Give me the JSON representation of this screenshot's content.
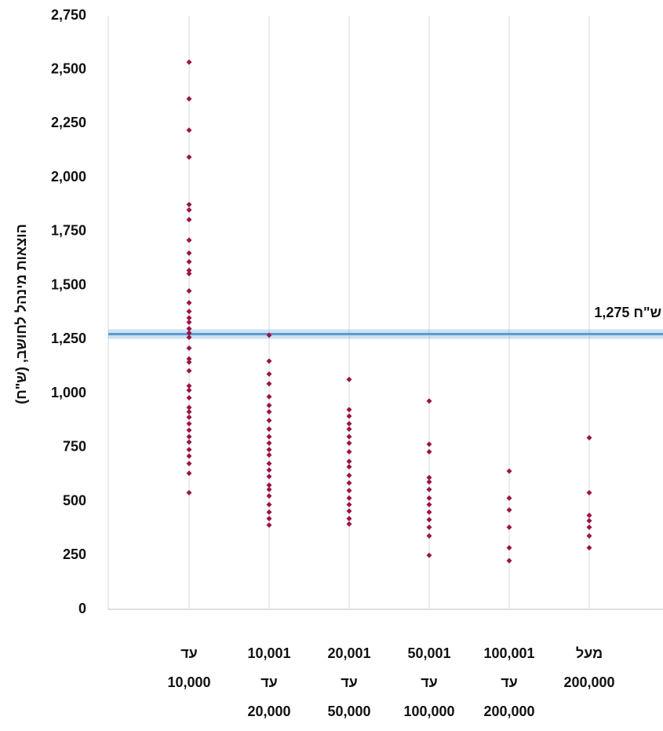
{
  "chart_data": {
    "type": "strip",
    "y_label": "הוצאות מינהל לחושב, (ש\"ח)",
    "categories": [
      [
        "עד",
        "10,000"
      ],
      [
        "10,001",
        "עד",
        "20,000"
      ],
      [
        "20,001",
        "עד",
        "50,000"
      ],
      [
        "50,001",
        "עד",
        "100,000"
      ],
      [
        "100,001",
        "עד",
        "200,000"
      ],
      [
        "מעל",
        "200,000"
      ]
    ],
    "values": [
      [
        2535,
        2365,
        2220,
        2095,
        1875,
        1850,
        1805,
        1710,
        1650,
        1610,
        1570,
        1555,
        1475,
        1420,
        1380,
        1350,
        1330,
        1300,
        1280,
        1260,
        1210,
        1160,
        1145,
        1105,
        1035,
        1015,
        980,
        935,
        915,
        890,
        860,
        830,
        800,
        775,
        740,
        710,
        675,
        630,
        540
      ],
      [
        1270,
        1150,
        1090,
        1045,
        985,
        945,
        915,
        875,
        835,
        800,
        770,
        740,
        715,
        675,
        645,
        615,
        575,
        555,
        525,
        485,
        450,
        420,
        390
      ],
      [
        1065,
        925,
        895,
        860,
        835,
        800,
        770,
        730,
        685,
        660,
        620,
        585,
        550,
        515,
        485,
        455,
        420,
        395
      ],
      [
        965,
        765,
        730,
        610,
        590,
        555,
        515,
        485,
        450,
        415,
        380,
        340,
        250
      ],
      [
        640,
        515,
        460,
        380,
        285,
        225
      ],
      [
        795,
        540,
        435,
        410,
        380,
        340,
        285
      ]
    ],
    "color": "#9b1446",
    "reference_line": {
      "value": 1275,
      "label": "1,275 ש\"ח",
      "color": "#5b9bd5"
    },
    "ylim": [
      0,
      2750
    ],
    "yticks": [
      0,
      250,
      500,
      750,
      {
        "value": 1000,
        "label": "1,000"
      },
      {
        "value": 1250,
        "label": "1,250"
      },
      {
        "value": 1500,
        "label": "1,500"
      },
      {
        "value": 1750,
        "label": "1,750"
      },
      {
        "value": 2000,
        "label": "2,000"
      },
      {
        "value": 2250,
        "label": "2,250"
      },
      {
        "value": 2500,
        "label": "2,500"
      },
      {
        "value": 2750,
        "label": "2,750"
      }
    ],
    "grid": true
  }
}
